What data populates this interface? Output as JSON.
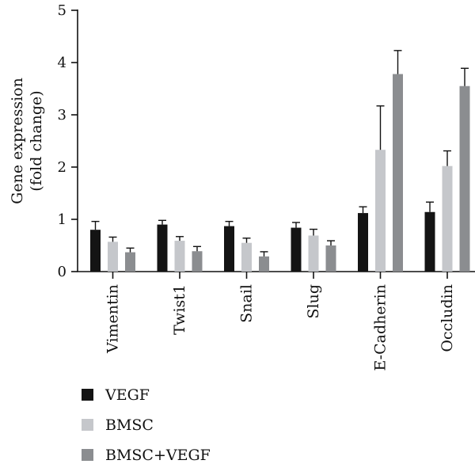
{
  "chart_data": {
    "type": "bar",
    "title": "",
    "ylabel": "Gene expression\n(fold change)",
    "xlabel": "",
    "ylim": [
      0,
      5
    ],
    "yticks": [
      0,
      1,
      2,
      3,
      4,
      5
    ],
    "grid": false,
    "legend_position": "bottom-left",
    "categories": [
      "Vimentin",
      "Twist1",
      "Snail",
      "Slug",
      "E-Cadherin",
      "Occludin"
    ],
    "series": [
      {
        "name": "VEGF",
        "color": "#141414",
        "values": [
          0.8,
          0.9,
          0.87,
          0.84,
          1.12,
          1.14
        ],
        "errors": [
          0.16,
          0.08,
          0.09,
          0.1,
          0.12,
          0.19
        ]
      },
      {
        "name": "BMSC",
        "color": "#c5c7cb",
        "values": [
          0.57,
          0.59,
          0.55,
          0.69,
          2.33,
          2.02
        ],
        "errors": [
          0.09,
          0.08,
          0.09,
          0.12,
          0.84,
          0.29
        ]
      },
      {
        "name": "BMSC+VEGF",
        "color": "#8b8d90",
        "values": [
          0.37,
          0.39,
          0.29,
          0.5,
          3.78,
          3.55
        ],
        "errors": [
          0.08,
          0.09,
          0.09,
          0.09,
          0.45,
          0.34
        ]
      }
    ]
  }
}
